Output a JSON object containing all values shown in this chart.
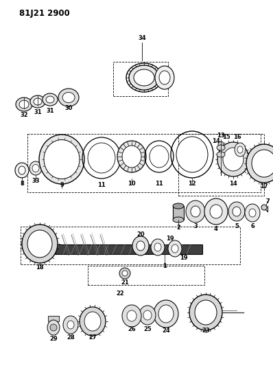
{
  "title": "81J21 2900",
  "bg_color": "#ffffff",
  "line_color": "#1a1a1a",
  "title_fontsize": 8.5,
  "fs": 6.0
}
